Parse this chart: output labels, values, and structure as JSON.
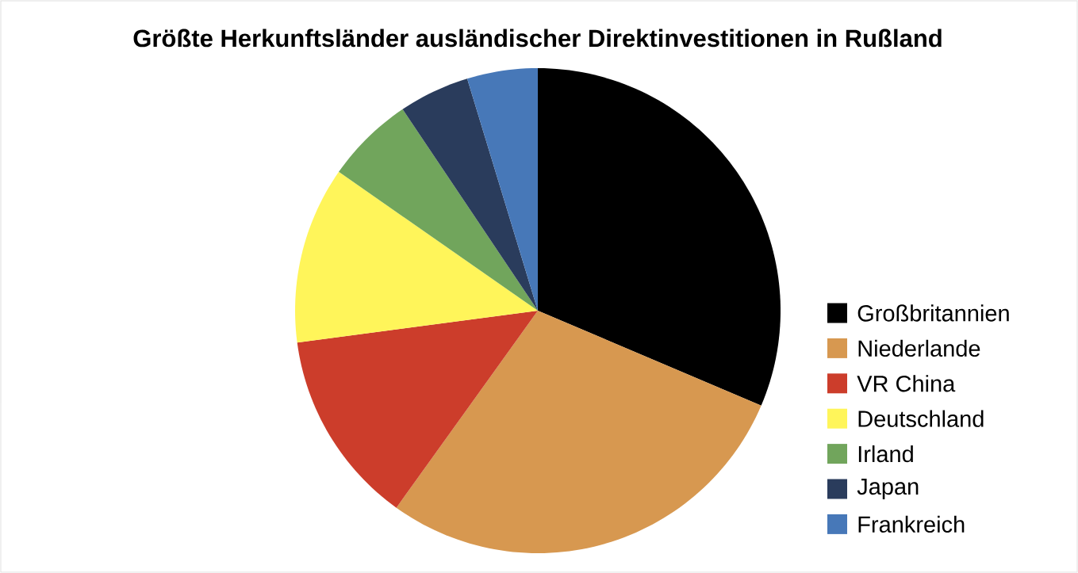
{
  "chart_data": {
    "type": "pie",
    "title": "Größte Herkunftsländer ausländischer Direktinvestitionen in Rußland",
    "categories": [
      "Großbritannien",
      "Niederlande",
      "VR China",
      "Deutschland",
      "Irland",
      "Japan",
      "Frankreich"
    ],
    "values": [
      31.4,
      28.5,
      13.0,
      11.8,
      5.9,
      4.7,
      4.7
    ],
    "colors": [
      "#000000",
      "#d79850",
      "#cc3d2b",
      "#fff55a",
      "#71a55c",
      "#2a3c5c",
      "#4778b8"
    ],
    "legend": "right"
  }
}
